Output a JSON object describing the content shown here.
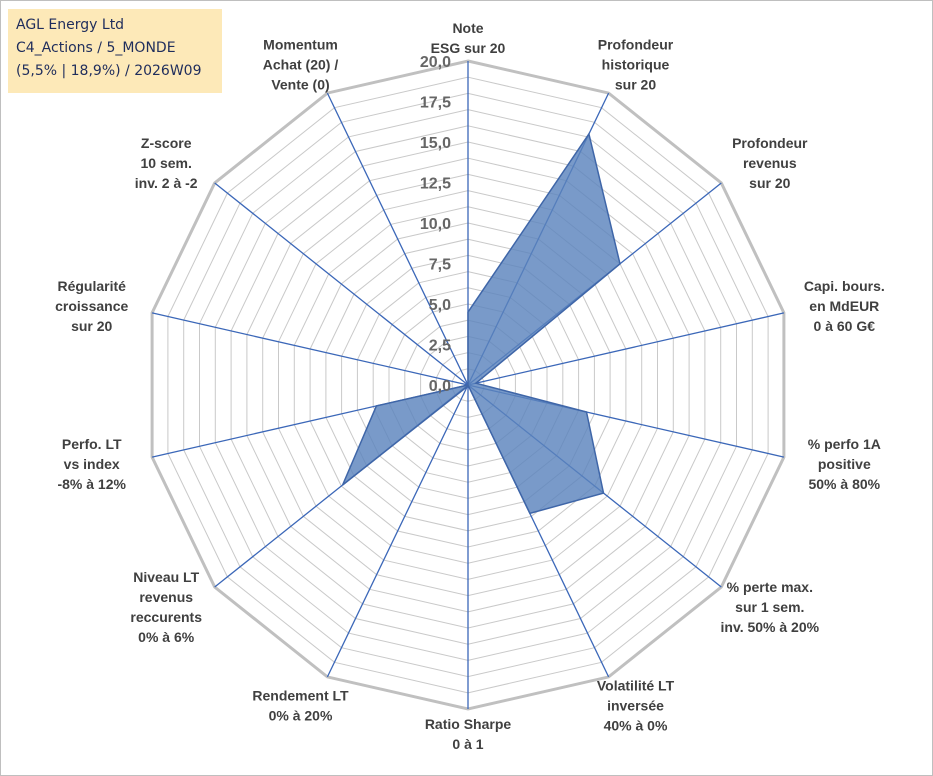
{
  "info": {
    "company": "AGL Energy Ltd",
    "category": "C4_Actions / 5_MONDE",
    "params": "(5,5% | 18,9%) / 2026W09"
  },
  "chart_data": {
    "type": "radar",
    "rlim": [
      0,
      20
    ],
    "tick_values": [
      0,
      2.5,
      5,
      7.5,
      10,
      12.5,
      15,
      17.5,
      20
    ],
    "tick_labels": [
      "0,0",
      "2,5",
      "5,0",
      "7,5",
      "10,0",
      "12,5",
      "15,0",
      "17,5",
      "20,0"
    ],
    "grid": true,
    "axes": [
      [
        "Note",
        "ESG sur 20"
      ],
      [
        "Profondeur",
        "historique",
        "sur 20"
      ],
      [
        "Profondeur",
        "revenus",
        "sur 20"
      ],
      [
        "Capi. bours.",
        "en MdEUR",
        "0 à 60 G€"
      ],
      [
        "% perfo 1A",
        "positive",
        "50% à 80%"
      ],
      [
        "% perte max.",
        "sur 1 sem.",
        "inv. 50% à 20%"
      ],
      [
        "Volatilité LT",
        "inversée",
        "40% à 0%"
      ],
      [
        "Ratio Sharpe",
        "0 à 1"
      ],
      [
        "Rendement LT",
        "0% à 20%"
      ],
      [
        "Niveau LT",
        "revenus",
        "reccurents",
        "0% à 6%"
      ],
      [
        "Perfo. LT",
        "vs index",
        "-8% à 12%"
      ],
      [
        "Régularité",
        "croissance",
        "sur 20"
      ],
      [
        "Z-score",
        "10 sem.",
        "inv. 2 à -2"
      ],
      [
        "Momentum",
        "Achat (20) /",
        "Vente (0)"
      ]
    ],
    "values": [
      4.5,
      17.2,
      12.0,
      0.5,
      7.5,
      10.7,
      8.8,
      0.0,
      0.1,
      9.9,
      5.8,
      0.0,
      0.0,
      0.0
    ],
    "colors": {
      "fill": "#5b84bd",
      "stroke": "#3f66a8",
      "spoke": "#3b67b8",
      "grid": "#c9c9c9"
    }
  }
}
